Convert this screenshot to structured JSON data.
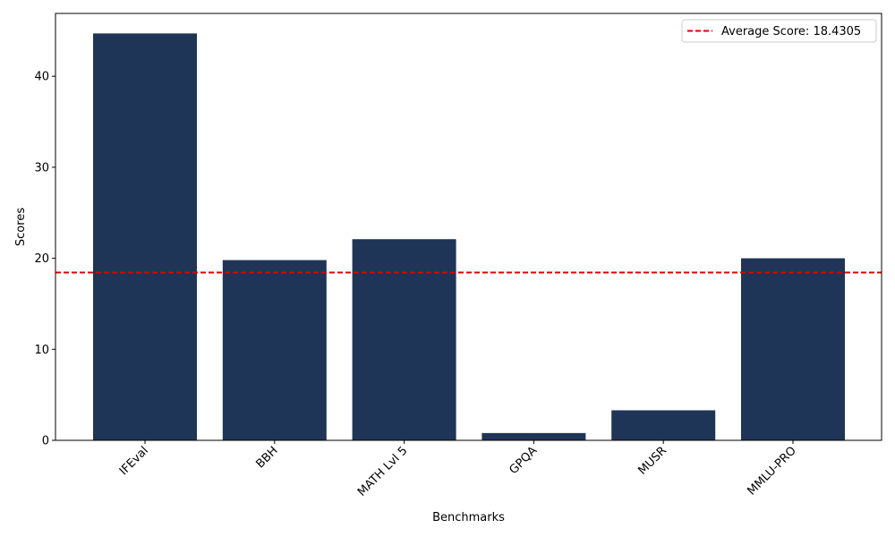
{
  "chart_data": {
    "type": "bar",
    "categories": [
      "IFEval",
      "BBH",
      "MATH Lvl 5",
      "GPQA",
      "MUSR",
      "MMLU-PRO"
    ],
    "values": [
      44.7,
      19.8,
      22.1,
      0.8,
      3.3,
      20.0
    ],
    "xlabel": "Benchmarks",
    "ylabel": "Scores",
    "ylim": [
      0,
      46.9
    ],
    "yticks": [
      0,
      10,
      20,
      30,
      40
    ],
    "bar_color": "#1f3557",
    "reference_line": {
      "value": 18.4305,
      "label": "Average Score: 18.4305",
      "color": "#e00000",
      "style": "dashed"
    },
    "legend_position": "top-right",
    "grid": false
  }
}
